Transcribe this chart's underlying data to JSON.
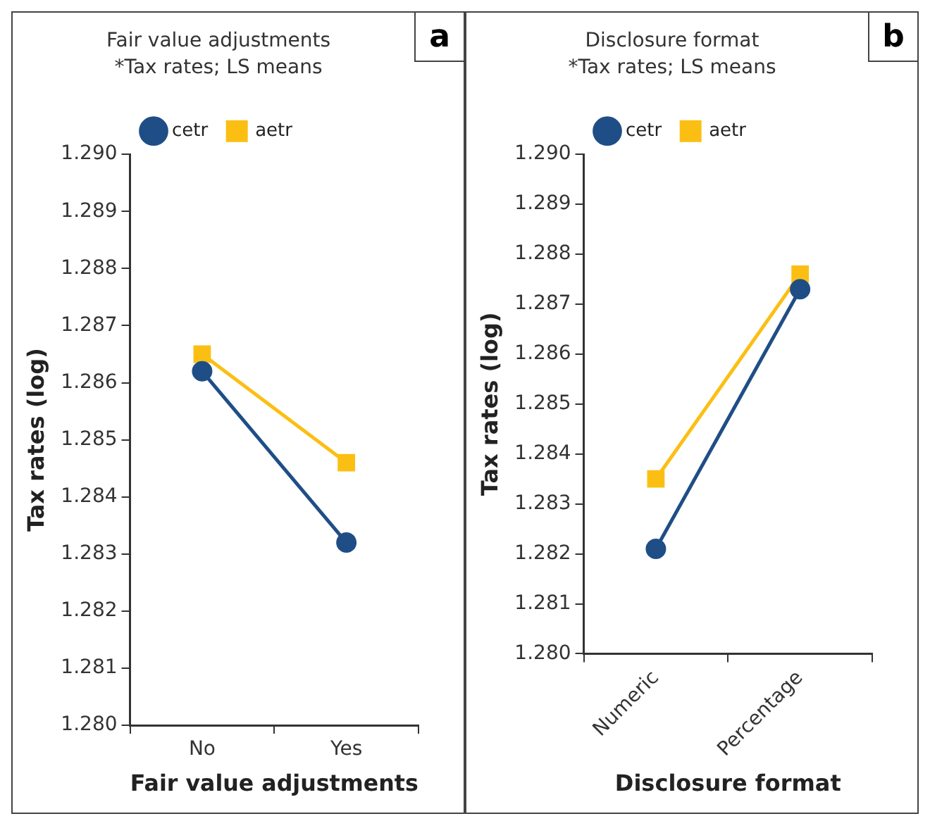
{
  "chart_data": [
    {
      "type": "line",
      "title": "Fair value adjustments",
      "subtitle": "*Tax rates; LS means",
      "xlabel": "Fair value adjustments",
      "ylabel": "Tax rates (log)",
      "annotations": [
        "a"
      ],
      "categories": [
        "No",
        "Yes"
      ],
      "series": [
        {
          "name": "cetr",
          "color": "#1f4e86",
          "marker": "circle",
          "values": [
            1.2862,
            1.2832
          ]
        },
        {
          "name": "aetr",
          "color": "#fbbf14",
          "marker": "square",
          "values": [
            1.2865,
            1.2846
          ]
        }
      ],
      "ylim": [
        1.28,
        1.29
      ],
      "yticks": [
        {
          "value": 1.28,
          "label": "1.280"
        },
        {
          "value": 1.281,
          "label": "1.281"
        },
        {
          "value": 1.282,
          "label": "1.282"
        },
        {
          "value": 1.283,
          "label": "1.283"
        },
        {
          "value": 1.284,
          "label": "1.284"
        },
        {
          "value": 1.285,
          "label": "1.285"
        },
        {
          "value": 1.286,
          "label": "1.286"
        },
        {
          "value": 1.287,
          "label": "1.287"
        },
        {
          "value": 1.288,
          "label": "1.288"
        },
        {
          "value": 1.289,
          "label": "1.289"
        },
        {
          "value": 1.29,
          "label": "1.290"
        }
      ],
      "grid": false,
      "legend": "top"
    },
    {
      "type": "line",
      "title": "Disclosure format",
      "subtitle": "*Tax rates; LS means",
      "xlabel": "Disclosure format",
      "ylabel": "Tax rates (log)",
      "annotations": [
        "b"
      ],
      "categories": [
        "Numeric",
        "Percentage"
      ],
      "series": [
        {
          "name": "cetr",
          "color": "#1f4e86",
          "marker": "circle",
          "values": [
            1.2821,
            1.2873
          ]
        },
        {
          "name": "aetr",
          "color": "#fbbf14",
          "marker": "square",
          "values": [
            1.2835,
            1.2876
          ]
        }
      ],
      "ylim": [
        1.28,
        1.29
      ],
      "yticks": [
        {
          "value": 1.28,
          "label": "1.280"
        },
        {
          "value": 1.281,
          "label": "1.281"
        },
        {
          "value": 1.282,
          "label": "1.282"
        },
        {
          "value": 1.283,
          "label": "1.283"
        },
        {
          "value": 1.284,
          "label": "1.284"
        },
        {
          "value": 1.285,
          "label": "1.285"
        },
        {
          "value": 1.286,
          "label": "1.286"
        },
        {
          "value": 1.287,
          "label": "1.287"
        },
        {
          "value": 1.288,
          "label": "1.288"
        },
        {
          "value": 1.289,
          "label": "1.289"
        },
        {
          "value": 1.29,
          "label": "1.290"
        }
      ],
      "grid": false,
      "legend": "top"
    }
  ]
}
